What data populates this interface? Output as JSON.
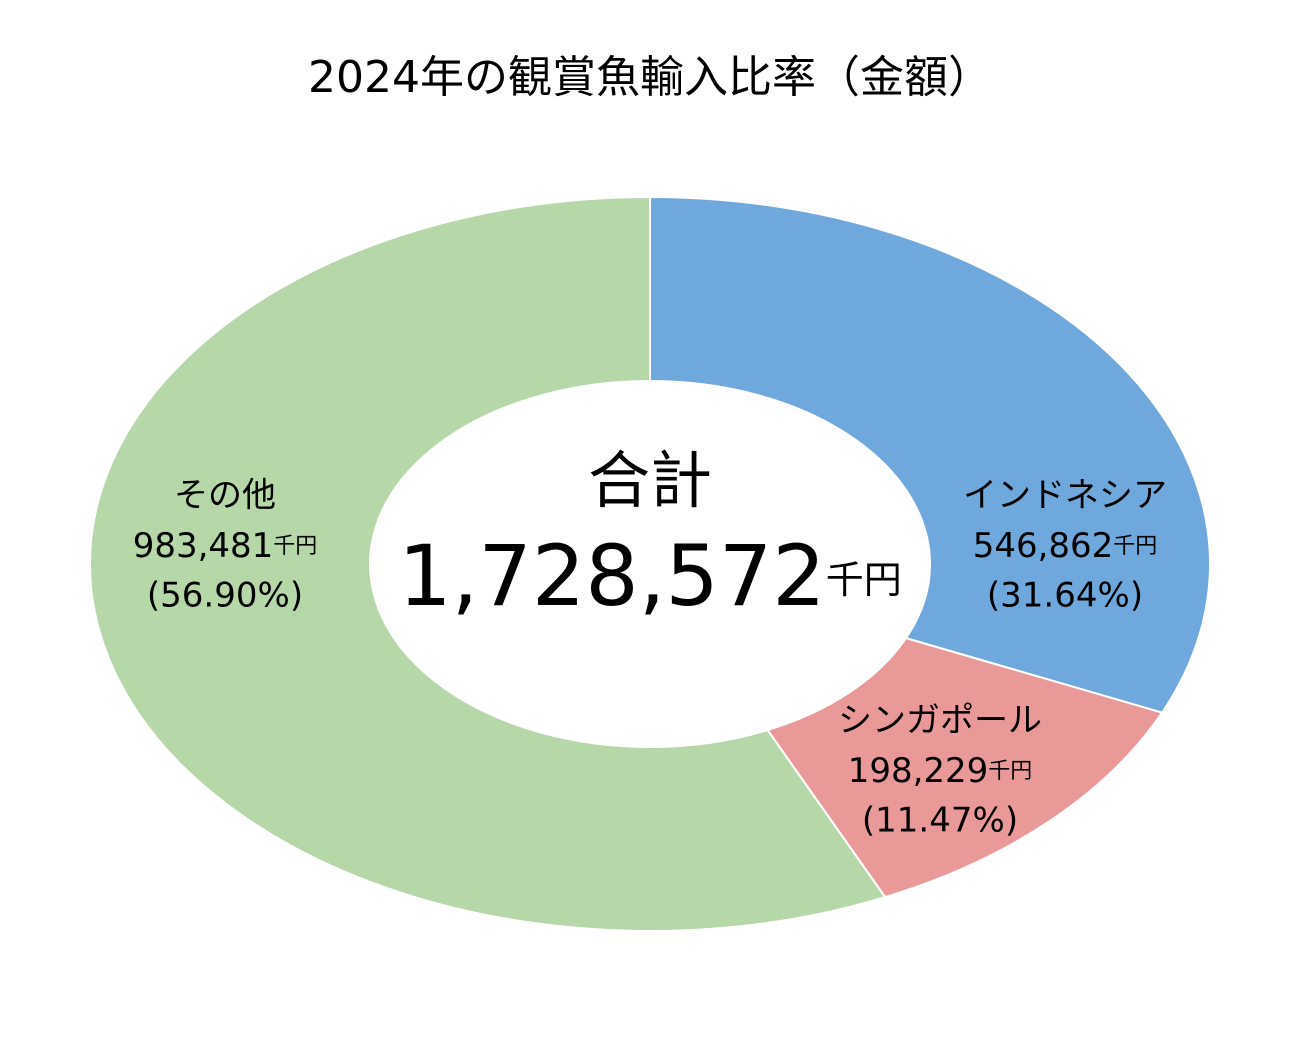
{
  "chart_data": {
    "type": "donut",
    "title": "2024年の観賞魚輸入比率（金額）",
    "categories": [
      "インドネシア",
      "シンガポール",
      "その他"
    ],
    "values": [
      546862,
      198229,
      983481
    ],
    "value_labels": [
      "546,862",
      "198,229",
      "983,481"
    ],
    "unit": "千円",
    "percent_labels": [
      "(31.64%)",
      "(11.47%)",
      "(56.90%)"
    ],
    "colors": [
      "#6fa8dc",
      "#ea9999",
      "#b6d7a8"
    ],
    "center_label": "合計",
    "total_label": "1,728,572"
  }
}
